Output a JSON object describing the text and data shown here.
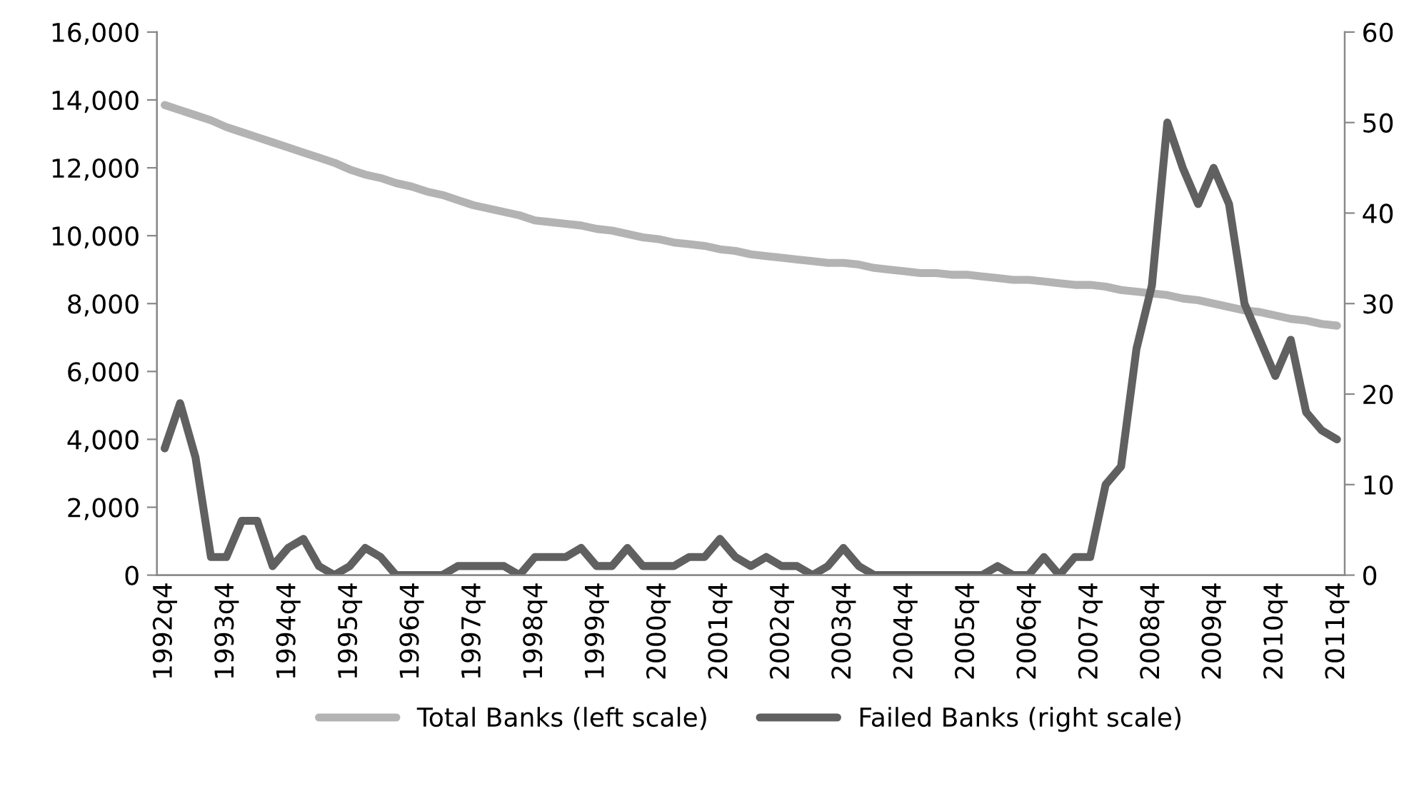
{
  "chart_data": {
    "type": "line",
    "categories": [
      "1992q4",
      null,
      null,
      null,
      "1993q4",
      null,
      null,
      null,
      "1994q4",
      null,
      null,
      null,
      "1995q4",
      null,
      null,
      null,
      "1996q4",
      null,
      null,
      null,
      "1997q4",
      null,
      null,
      null,
      "1998q4",
      null,
      null,
      null,
      "1999q4",
      null,
      null,
      null,
      "2000q4",
      null,
      null,
      null,
      "2001q4",
      null,
      null,
      null,
      "2002q4",
      null,
      null,
      null,
      "2003q4",
      null,
      null,
      null,
      "2004q4",
      null,
      null,
      null,
      "2005q4",
      null,
      null,
      null,
      "2006q4",
      null,
      null,
      null,
      "2007q4",
      null,
      null,
      null,
      "2008q4",
      null,
      null,
      null,
      "2009q4",
      null,
      null,
      null,
      "2010q4",
      null,
      null,
      null,
      "2011q4"
    ],
    "series": [
      {
        "name": "Total Banks (left scale)",
        "color": "#b3b3b3",
        "values": [
          13850,
          13700,
          13550,
          13400,
          13200,
          13050,
          12900,
          12750,
          12600,
          12450,
          12300,
          12150,
          11950,
          11800,
          11700,
          11550,
          11450,
          11300,
          11200,
          11050,
          10900,
          10800,
          10700,
          10600,
          10450,
          10400,
          10350,
          10300,
          10200,
          10150,
          10050,
          9950,
          9900,
          9800,
          9750,
          9700,
          9600,
          9550,
          9450,
          9400,
          9350,
          9300,
          9250,
          9200,
          9200,
          9150,
          9050,
          9000,
          8950,
          8900,
          8900,
          8850,
          8850,
          8800,
          8750,
          8700,
          8700,
          8650,
          8600,
          8550,
          8550,
          8500,
          8400,
          8350,
          8300,
          8250,
          8150,
          8100,
          8000,
          7900,
          7800,
          7750,
          7650,
          7550,
          7500,
          7400,
          7350
        ]
      },
      {
        "name": "Failed Banks (right scale)",
        "color": "#606060",
        "axis": "y2",
        "values": [
          14,
          19,
          13,
          2,
          2,
          6,
          6,
          1,
          3,
          4,
          1,
          0,
          1,
          3,
          2,
          0,
          0,
          0,
          0,
          1,
          1,
          1,
          1,
          0,
          2,
          2,
          2,
          3,
          1,
          1,
          3,
          1,
          1,
          1,
          2,
          2,
          4,
          2,
          1,
          2,
          1,
          1,
          0,
          1,
          3,
          1,
          0,
          0,
          0,
          0,
          0,
          0,
          0,
          0,
          1,
          0,
          0,
          2,
          0,
          2,
          2,
          10,
          12,
          25,
          32,
          50,
          45,
          41,
          45,
          41,
          30,
          26,
          22,
          26,
          18,
          16,
          15
        ]
      }
    ],
    "ylim": [
      0,
      16000
    ],
    "yticks": [
      0,
      {
        "value": 2000,
        "label": "2,000"
      },
      {
        "value": 4000,
        "label": "4,000"
      },
      {
        "value": 6000,
        "label": "6,000"
      },
      {
        "value": 8000,
        "label": "8,000"
      },
      {
        "value": 10000,
        "label": "10,000"
      },
      {
        "value": 12000,
        "label": "12,000"
      },
      {
        "value": 14000,
        "label": "14,000"
      },
      {
        "value": 16000,
        "label": "16,000"
      }
    ],
    "y2lim": [
      0,
      60
    ],
    "y2ticks": [
      0,
      10,
      20,
      30,
      40,
      50,
      60
    ],
    "legend": "bottom",
    "grid": false,
    "marker": "none",
    "line_style": "solid"
  }
}
